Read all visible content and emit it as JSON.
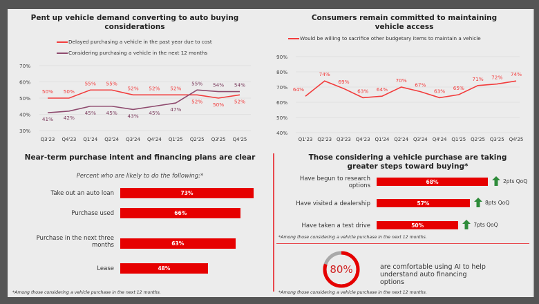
{
  "colors": {
    "red": "#f23c3c",
    "purple": "#8e4a6e",
    "bar_red": "#e60000",
    "arrow_green": "#2e8b3a",
    "donut_gray": "#a9a9a9"
  },
  "chart_data": [
    {
      "id": "pent-up-demand",
      "type": "line",
      "title": "Pent up vehicle demand converting to auto buying considerations",
      "categories": [
        "Q3'23",
        "Q4'23",
        "Q1'24",
        "Q2'24",
        "Q3'24",
        "Q4'24",
        "Q1'25",
        "Q2'25",
        "Q3'25",
        "Q4'25"
      ],
      "series": [
        {
          "name": "Delayed purchasing a vehicle in the past year due to cost",
          "color": "#f23c3c",
          "values": [
            50,
            50,
            55,
            55,
            52,
            52,
            52,
            52,
            50,
            52
          ]
        },
        {
          "name": "Considering purchasing a vehicle in the next 12 months",
          "color": "#8e4a6e",
          "values": [
            41,
            42,
            45,
            45,
            43,
            45,
            47,
            55,
            54,
            54
          ]
        }
      ],
      "ylim": [
        30,
        70
      ],
      "yticks": [
        "30%",
        "40%",
        "50%",
        "60%",
        "70%"
      ],
      "ytick_values": [
        30,
        40,
        50,
        60,
        70
      ],
      "grid": true,
      "legend": "top"
    },
    {
      "id": "maintain-access",
      "type": "line",
      "title": "Consumers remain committed to maintaining vehicle access",
      "categories": [
        "Q1'23",
        "Q2'23",
        "Q3'23",
        "Q4'23",
        "Q1'24",
        "Q2'24",
        "Q3'24",
        "Q4'24",
        "Q1'25",
        "Q2'25",
        "Q3'25",
        "Q4'25"
      ],
      "series": [
        {
          "name": "Would be willing to sacrifice other budgetary items to maintain a vehicle",
          "color": "#f23c3c",
          "values": [
            64,
            74,
            69,
            63,
            64,
            70,
            67,
            63,
            65,
            71,
            72,
            74
          ]
        }
      ],
      "ylim": [
        40,
        90
      ],
      "yticks": [
        "40%",
        "50%",
        "60%",
        "70%",
        "80%",
        "90%"
      ],
      "ytick_values": [
        40,
        50,
        60,
        70,
        80,
        90
      ],
      "grid": true,
      "legend": "top"
    },
    {
      "id": "purchase-intent",
      "type": "bar",
      "orientation": "horizontal",
      "title": "Near-term purchase intent and financing plans are clear",
      "subtitle": "Percent who are likely to do the following:*",
      "categories": [
        "Take out an auto loan",
        "Purchase used",
        "Purchase in the next three months",
        "Lease"
      ],
      "values": [
        73,
        66,
        63,
        48
      ],
      "value_labels": [
        "73%",
        "66%",
        "63%",
        "48%"
      ],
      "footnote": "*Among those considering a vehicle purchase in the next 12 months."
    },
    {
      "id": "steps-toward-buying",
      "type": "bar",
      "orientation": "horizontal",
      "title": "Those considering a vehicle purchase are taking greater steps toward buying*",
      "categories": [
        "Have begun to research options",
        "Have visited a dealership",
        "Have taken a test drive"
      ],
      "values": [
        68,
        57,
        50
      ],
      "value_labels": [
        "68%",
        "57%",
        "50%"
      ],
      "deltas": [
        "2pts QoQ",
        "8pts QoQ",
        "7pts QoQ"
      ],
      "footnote": "*Among those considering a vehicle purchase in the next 12 months."
    },
    {
      "id": "ai-comfort",
      "type": "pie",
      "value": 80,
      "value_label": "80%",
      "text": "are comfortable using AI to help understand auto financing options",
      "footnote": "*Among those considering a vehicle purchase in the next 12 months."
    }
  ],
  "labels": {
    "c1_title_l1": "Pent up vehicle demand converting to auto buying",
    "c1_title_l2": "considerations",
    "c2_title_l1": "Consumers remain committed to maintaining",
    "c2_title_l2": "vehicle access",
    "c3_title": "Near-term purchase intent and financing plans are clear",
    "c4_title_l1": "Those considering a vehicle purchase are taking",
    "c4_title_l2": "greater steps toward buying*",
    "c3_bar_labels": [
      "Take out an auto loan",
      "Purchase used",
      "Purchase in the next three months",
      "Lease"
    ],
    "c4_bar_labels": [
      "Have begun to research options",
      "Have visited a dealership",
      "Have taken a test drive"
    ]
  }
}
